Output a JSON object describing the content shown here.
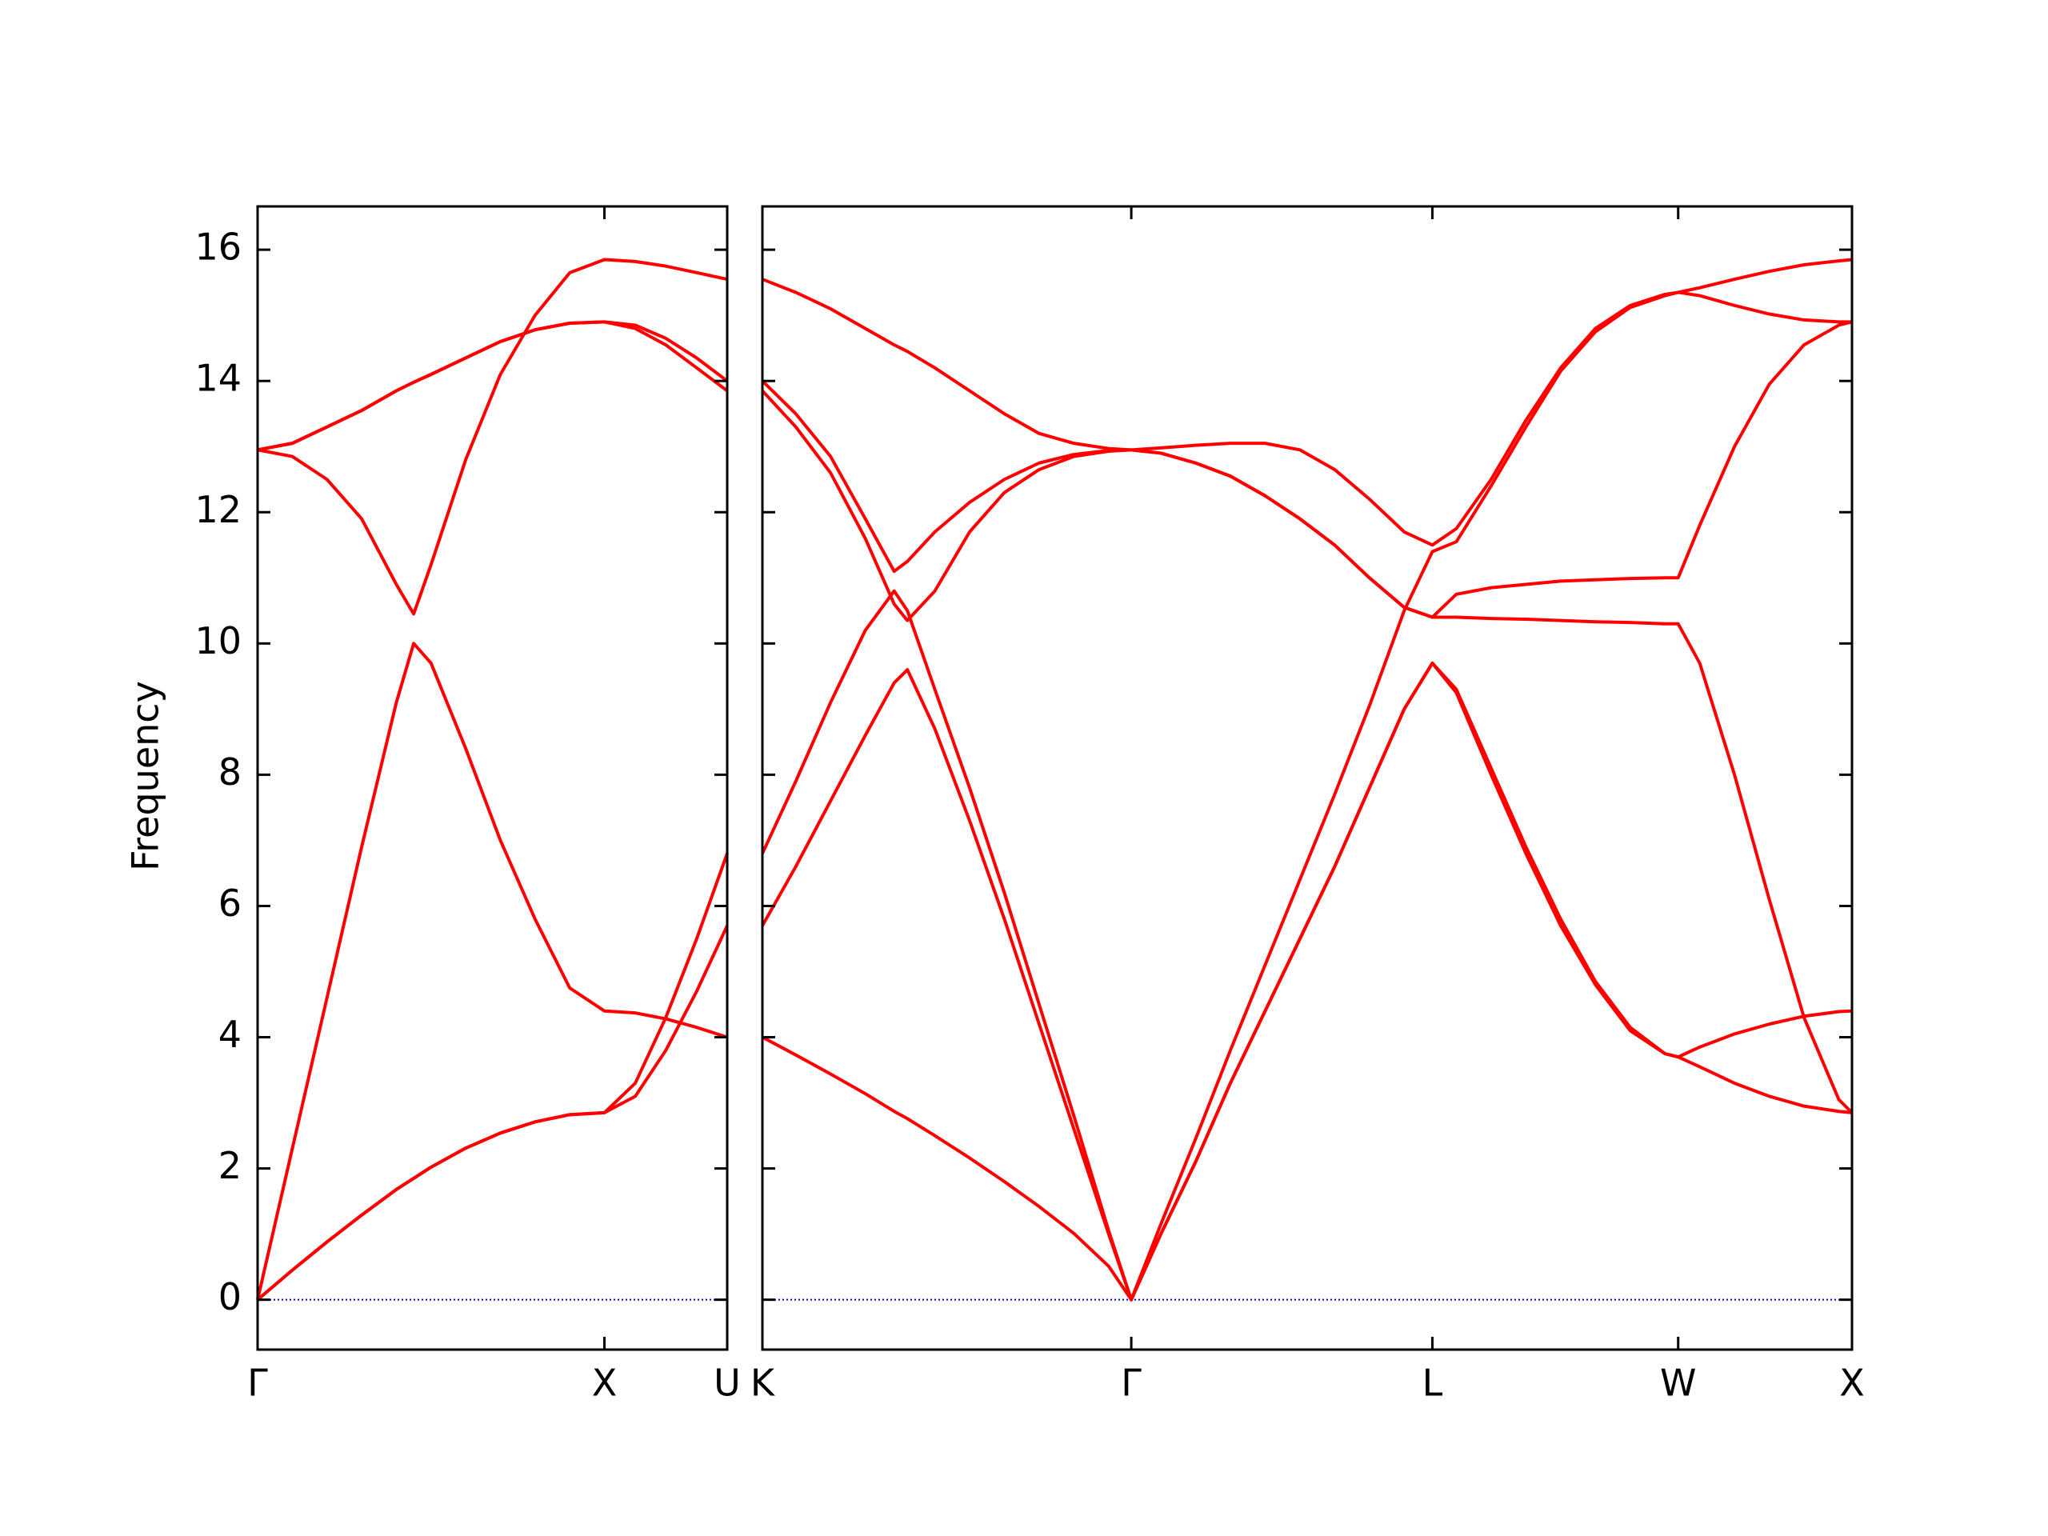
{
  "chart_data": [
    {
      "type": "line",
      "ylabel": "Frequency",
      "x": [
        0,
        0.1,
        0.2,
        0.3,
        0.4,
        0.45,
        0.5,
        0.6,
        0.7,
        0.8,
        0.9,
        1.0,
        1.089,
        1.177,
        1.266,
        1.354
      ],
      "xlim": [
        0,
        1.354
      ],
      "xticks": [
        {
          "value": 0,
          "label": "Γ"
        },
        {
          "value": 1.0,
          "label": "X"
        },
        {
          "value": 1.354,
          "label": "U"
        }
      ],
      "ylim": [
        -0.76,
        16.66
      ],
      "yticks": [
        0,
        2,
        4,
        6,
        8,
        10,
        12,
        14,
        16
      ],
      "hline": 0,
      "hline_color": "#0000cc",
      "series": [
        {
          "color": "#ff0000",
          "values": [
            0,
            0.45,
            0.88,
            1.29,
            1.68,
            1.85,
            2.02,
            2.31,
            2.54,
            2.71,
            2.82,
            2.85,
            3.1,
            3.8,
            4.7,
            5.7
          ]
        },
        {
          "color": "#ff0000",
          "values": [
            0,
            0.45,
            0.88,
            1.29,
            1.68,
            1.85,
            2.02,
            2.31,
            2.54,
            2.71,
            2.82,
            2.85,
            3.3,
            4.3,
            5.5,
            6.8
          ]
        },
        {
          "color": "#ff0000",
          "values": [
            0,
            2.3,
            4.6,
            6.9,
            9.1,
            10.0,
            9.7,
            8.4,
            7.0,
            5.8,
            4.75,
            4.4,
            4.37,
            4.28,
            4.15,
            4.0
          ]
        },
        {
          "color": "#ff0000",
          "values": [
            12.95,
            13.05,
            13.3,
            13.55,
            13.85,
            13.98,
            14.1,
            14.35,
            14.6,
            14.78,
            14.88,
            14.9,
            14.85,
            14.65,
            14.35,
            14.0
          ]
        },
        {
          "color": "#ff0000",
          "values": [
            12.95,
            13.05,
            13.3,
            13.55,
            13.85,
            13.98,
            14.1,
            14.35,
            14.6,
            14.78,
            14.88,
            14.9,
            14.8,
            14.55,
            14.2,
            13.85
          ]
        },
        {
          "color": "#ff0000",
          "values": [
            12.95,
            12.85,
            12.5,
            11.9,
            10.9,
            10.45,
            11.2,
            12.8,
            14.1,
            15.0,
            15.65,
            15.85,
            15.82,
            15.75,
            15.65,
            15.55
          ]
        }
      ]
    },
    {
      "type": "line",
      "x": [
        1.354,
        1.45,
        1.55,
        1.65,
        1.733,
        1.771,
        1.85,
        1.95,
        2.05,
        2.15,
        2.25,
        2.35,
        2.415,
        2.5,
        2.6,
        2.7,
        2.8,
        2.9,
        3.0,
        3.1,
        3.2,
        3.281,
        3.35,
        3.45,
        3.55,
        3.65,
        3.75,
        3.85,
        3.95,
        3.988,
        4.05,
        4.15,
        4.25,
        4.35,
        4.45,
        4.488
      ],
      "xlim": [
        1.354,
        4.488
      ],
      "xticks": [
        {
          "value": 1.354,
          "label": "K"
        },
        {
          "value": 2.415,
          "label": "Γ"
        },
        {
          "value": 3.281,
          "label": "L"
        },
        {
          "value": 3.988,
          "label": "W"
        },
        {
          "value": 4.488,
          "label": "X"
        }
      ],
      "ylim": [
        -0.76,
        16.66
      ],
      "hline": 0,
      "hline_color": "#0000cc",
      "series": [
        {
          "color": "#ff0000",
          "values": [
            4.0,
            3.73,
            3.44,
            3.14,
            2.87,
            2.76,
            2.5,
            2.16,
            1.8,
            1.42,
            1.01,
            0.51,
            0,
            1.0,
            2.1,
            3.3,
            4.4,
            5.5,
            6.6,
            7.8,
            9.0,
            9.7,
            9.3,
            8.1,
            6.9,
            5.8,
            4.85,
            4.15,
            3.75,
            3.7,
            3.55,
            3.3,
            3.1,
            2.95,
            2.87,
            2.85
          ]
        },
        {
          "color": "#ff0000",
          "values": [
            5.7,
            6.6,
            7.6,
            8.6,
            9.4,
            9.6,
            8.7,
            7.3,
            5.8,
            4.2,
            2.6,
            1.0,
            0,
            1.0,
            2.1,
            3.3,
            4.4,
            5.5,
            6.6,
            7.8,
            9.0,
            9.7,
            9.25,
            8.0,
            6.8,
            5.7,
            4.8,
            4.1,
            3.75,
            3.7,
            3.85,
            4.05,
            4.2,
            4.32,
            4.39,
            4.4
          ]
        },
        {
          "color": "#ff0000",
          "values": [
            6.8,
            7.9,
            9.1,
            10.2,
            10.8,
            10.5,
            9.3,
            7.8,
            6.2,
            4.5,
            2.8,
            1.05,
            0,
            1.15,
            2.45,
            3.8,
            5.1,
            6.4,
            7.7,
            9.05,
            10.5,
            11.4,
            11.55,
            12.4,
            13.3,
            14.15,
            14.75,
            15.12,
            15.3,
            15.35,
            15.3,
            15.15,
            15.02,
            14.93,
            14.9,
            14.9
          ]
        },
        {
          "color": "#ff0000",
          "values": [
            13.85,
            13.3,
            12.6,
            11.6,
            10.6,
            10.35,
            10.8,
            11.7,
            12.3,
            12.65,
            12.85,
            12.93,
            12.95,
            12.9,
            12.75,
            12.55,
            12.25,
            11.9,
            11.5,
            11.0,
            10.55,
            10.4,
            10.4,
            10.38,
            10.37,
            10.35,
            10.33,
            10.32,
            10.3,
            10.3,
            9.7,
            8.0,
            6.1,
            4.3,
            3.05,
            2.85
          ]
        },
        {
          "color": "#ff0000",
          "values": [
            14.0,
            13.5,
            12.85,
            11.9,
            11.1,
            11.25,
            11.7,
            12.15,
            12.5,
            12.75,
            12.88,
            12.94,
            12.95,
            12.9,
            12.75,
            12.55,
            12.25,
            11.9,
            11.5,
            11.0,
            10.55,
            10.4,
            10.75,
            10.85,
            10.9,
            10.95,
            10.97,
            10.99,
            11.0,
            11.0,
            11.8,
            13.0,
            13.95,
            14.55,
            14.85,
            14.9
          ]
        },
        {
          "color": "#ff0000",
          "values": [
            15.55,
            15.35,
            15.1,
            14.8,
            14.55,
            14.45,
            14.2,
            13.85,
            13.5,
            13.2,
            13.05,
            12.97,
            12.95,
            12.98,
            13.02,
            13.05,
            13.05,
            12.95,
            12.65,
            12.2,
            11.7,
            11.5,
            11.75,
            12.5,
            13.4,
            14.2,
            14.8,
            15.15,
            15.32,
            15.35,
            15.42,
            15.55,
            15.67,
            15.77,
            15.83,
            15.85
          ]
        }
      ]
    }
  ]
}
